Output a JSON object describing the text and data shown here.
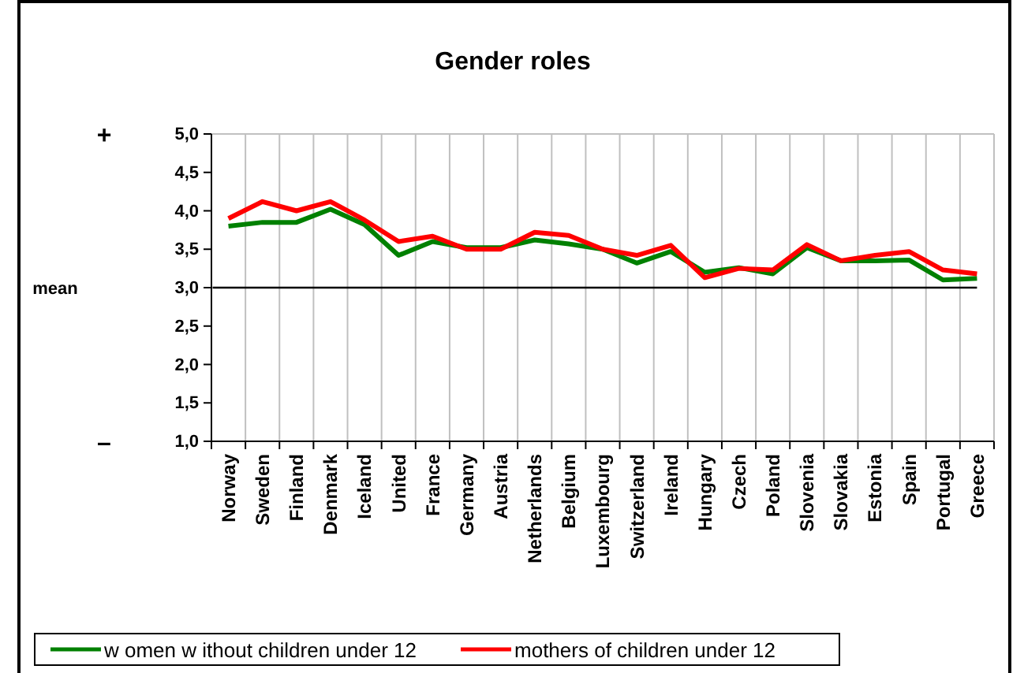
{
  "chart_data": {
    "type": "line",
    "title": "Gender roles",
    "categories": [
      "Norway",
      "Sweden",
      "Finland",
      "Denmark",
      "Iceland",
      "United",
      "France",
      "Germany",
      "Austria",
      "Netherlands",
      "Belgium",
      "Luxembourg",
      "Switzerland",
      "Ireland",
      "Hungary",
      "Czech",
      "Poland",
      "Slovenia",
      "Slovakia",
      "Estonia",
      "Spain",
      "Portugal",
      "Greece"
    ],
    "series": [
      {
        "name": "w omen w ithout children under 12",
        "color": "#008000",
        "values": [
          3.8,
          3.85,
          3.85,
          4.02,
          3.82,
          3.42,
          3.6,
          3.52,
          3.52,
          3.62,
          3.57,
          3.5,
          3.32,
          3.47,
          3.2,
          3.26,
          3.18,
          3.52,
          3.35,
          3.35,
          3.36,
          3.1,
          3.12
        ]
      },
      {
        "name": "mothers of children under 12",
        "color": "#ff0000",
        "values": [
          3.9,
          4.12,
          4.0,
          4.12,
          3.88,
          3.6,
          3.67,
          3.5,
          3.5,
          3.72,
          3.68,
          3.5,
          3.42,
          3.55,
          3.13,
          3.25,
          3.23,
          3.56,
          3.35,
          3.42,
          3.47,
          3.23,
          3.18
        ]
      }
    ],
    "ylim": [
      1,
      5
    ],
    "yticks": [
      {
        "value": 1,
        "label": "1,0"
      },
      {
        "value": 1.5,
        "label": "1,5"
      },
      {
        "value": 2,
        "label": "2,0"
      },
      {
        "value": 2.5,
        "label": "2,5"
      },
      {
        "value": 3,
        "label": "3,0"
      },
      {
        "value": 3.5,
        "label": "3,5"
      },
      {
        "value": 4,
        "label": "4,0"
      },
      {
        "value": 4.5,
        "label": "4,5"
      },
      {
        "value": 5,
        "label": "5,0"
      }
    ],
    "ref_lines": [
      {
        "axis": "y",
        "value": 3,
        "color": "#000000"
      }
    ],
    "annotations": [
      "+",
      "mean",
      "–"
    ],
    "grid": "x",
    "legend": "bottom",
    "marker": "none",
    "line_style": "solid"
  }
}
